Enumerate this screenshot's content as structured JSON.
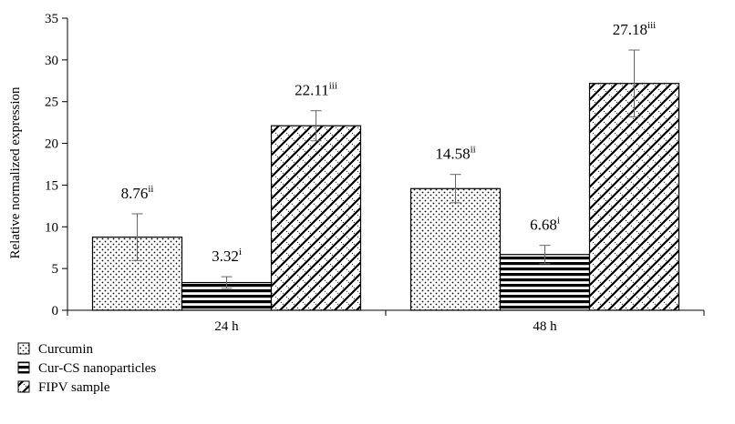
{
  "chart_data": {
    "type": "bar",
    "title": "",
    "xlabel": "",
    "ylabel": "Relative normalized expression",
    "ylim": [
      0,
      35
    ],
    "yticks": [
      0,
      5,
      10,
      15,
      20,
      25,
      30,
      35
    ],
    "grid": false,
    "legend_position": "bottom-left",
    "categories": [
      "24 h",
      "48 h"
    ],
    "series": [
      {
        "name": "Curcumin",
        "pattern": "dots",
        "values": [
          8.76,
          14.58
        ],
        "errors": [
          2.8,
          1.7
        ],
        "value_labels": [
          "8.76",
          "14.58"
        ],
        "superscripts": [
          "ii",
          "ii"
        ]
      },
      {
        "name": "Cur-CS nanoparticles",
        "pattern": "horizontal-stripes",
        "values": [
          3.32,
          6.68
        ],
        "errors": [
          0.7,
          1.1
        ],
        "value_labels": [
          "3.32",
          "6.68"
        ],
        "superscripts": [
          "i",
          "i"
        ]
      },
      {
        "name": "FIPV sample",
        "pattern": "diagonal-crosshatch",
        "values": [
          22.11,
          27.18
        ],
        "errors": [
          1.8,
          4.0
        ],
        "value_labels": [
          "22.11",
          "27.18"
        ],
        "superscripts": [
          "iii",
          "iii"
        ]
      }
    ]
  }
}
